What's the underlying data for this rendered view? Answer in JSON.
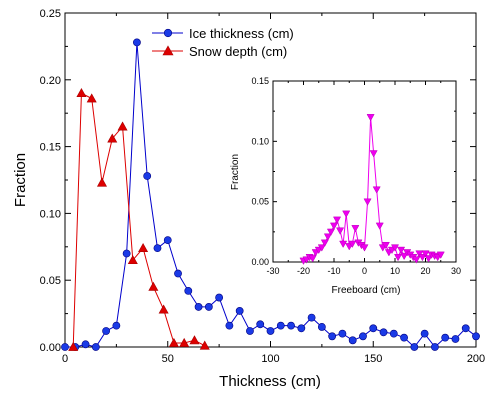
{
  "chart_data": [
    {
      "type": "line",
      "xlabel": "Thickness (cm)",
      "ylabel": "Fraction",
      "xlim": [
        0,
        200
      ],
      "ylim": [
        0,
        0.25
      ],
      "x_ticks": [
        "0",
        "50",
        "100",
        "150",
        "200"
      ],
      "y_ticks": [
        "0.00",
        "0.05",
        "0.10",
        "0.15",
        "0.20",
        "0.25"
      ],
      "grid": false,
      "legend_position": "top-center",
      "series": [
        {
          "name": "Ice thickness (cm)",
          "color": "#0000cc",
          "marker": "circle",
          "x": [
            0,
            5,
            10,
            15,
            20,
            25,
            30,
            35,
            40,
            45,
            50,
            55,
            60,
            65,
            70,
            75,
            80,
            85,
            90,
            95,
            100,
            105,
            110,
            115,
            120,
            125,
            130,
            135,
            140,
            145,
            150,
            155,
            160,
            165,
            170,
            175,
            180,
            185,
            190,
            195,
            200
          ],
          "y": [
            0,
            0,
            0.002,
            0,
            0.012,
            0.016,
            0.07,
            0.228,
            0.128,
            0.074,
            0.08,
            0.055,
            0.042,
            0.03,
            0.03,
            0.037,
            0.016,
            0.027,
            0.012,
            0.017,
            0.012,
            0.016,
            0.016,
            0.014,
            0.022,
            0.015,
            0.008,
            0.01,
            0.005,
            0.008,
            0.014,
            0.011,
            0.01,
            0.007,
            0,
            0.01,
            0,
            0.007,
            0.006,
            0.014,
            0.008
          ]
        },
        {
          "name": "Snow depth (cm)",
          "color": "#dd0000",
          "marker": "triangle-up",
          "x": [
            4,
            8,
            13,
            18,
            23,
            28,
            33,
            38,
            43,
            48,
            53,
            58,
            63,
            68
          ],
          "y": [
            0,
            0.19,
            0.186,
            0.123,
            0.156,
            0.165,
            0.065,
            0.074,
            0.045,
            0.028,
            0.003,
            0.003,
            0.005,
            0.001
          ]
        }
      ]
    },
    {
      "type": "line",
      "xlabel": "Freeboard (cm)",
      "ylabel": "Fraction",
      "xlim": [
        -30,
        30
      ],
      "ylim": [
        0,
        0.15
      ],
      "x_ticks": [
        "-30",
        "-20",
        "-10",
        "0",
        "10",
        "20",
        "30"
      ],
      "y_ticks": [
        "0.00",
        "0.05",
        "0.10",
        "0.15"
      ],
      "grid": false,
      "series": [
        {
          "color": "#ee00ee",
          "marker": "triangle-down",
          "x": [
            -20,
            -19,
            -18,
            -17,
            -16,
            -15,
            -14,
            -13,
            -12,
            -11,
            -10,
            -9,
            -8,
            -7,
            -6,
            -5,
            -4,
            -3,
            -2,
            -1,
            0,
            1,
            2,
            3,
            4,
            5,
            6,
            7,
            8,
            9,
            10,
            11,
            12,
            13,
            14,
            15,
            16,
            17,
            18,
            19,
            20,
            21,
            22,
            23,
            24,
            25
          ],
          "y": [
            0.001,
            0.002,
            0.004,
            0.003,
            0.008,
            0.01,
            0.012,
            0.016,
            0.021,
            0.025,
            0.03,
            0.035,
            0.026,
            0.015,
            0.04,
            0.013,
            0.015,
            0.028,
            0.016,
            0.014,
            0.012,
            0.05,
            0.12,
            0.09,
            0.06,
            0.03,
            0.012,
            0.014,
            0.008,
            0.01,
            0.012,
            0.004,
            0.01,
            0.005,
            0.008,
            0.006,
            0.004,
            0.002,
            0.007,
            0.004,
            0.007,
            0.003,
            0.006,
            0.005,
            0.004,
            0.006
          ]
        }
      ]
    }
  ]
}
